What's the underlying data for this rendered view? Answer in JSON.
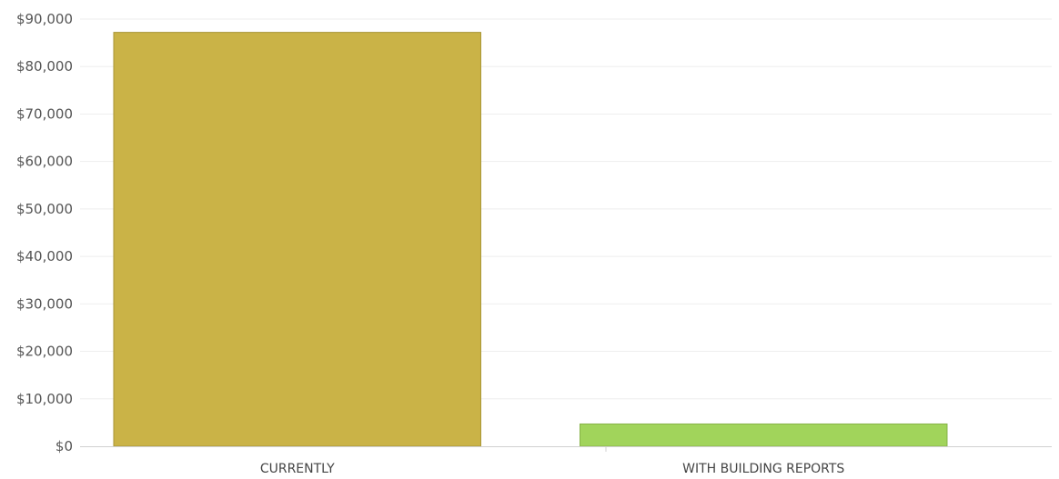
{
  "chart_data": {
    "type": "bar",
    "title": "",
    "xlabel": "",
    "ylabel": "",
    "categories": [
      "CURRENTLY",
      "WITH BUILDING REPORTS"
    ],
    "values": [
      87200,
      4700
    ],
    "bar_colors": [
      "#cab347",
      "#a1d45b"
    ],
    "bar_stroke_colors": [
      "#a89535",
      "#86b347"
    ],
    "ylim": [
      0,
      90000
    ],
    "yticks": [
      0,
      10000,
      20000,
      30000,
      40000,
      50000,
      60000,
      70000,
      80000,
      90000
    ],
    "ytick_labels": [
      "$0",
      "$10,000",
      "$20,000",
      "$30,000",
      "$40,000",
      "$50,000",
      "$60,000",
      "$70,000",
      "$80,000",
      "$90,000"
    ],
    "grid": true,
    "legend": "none"
  }
}
